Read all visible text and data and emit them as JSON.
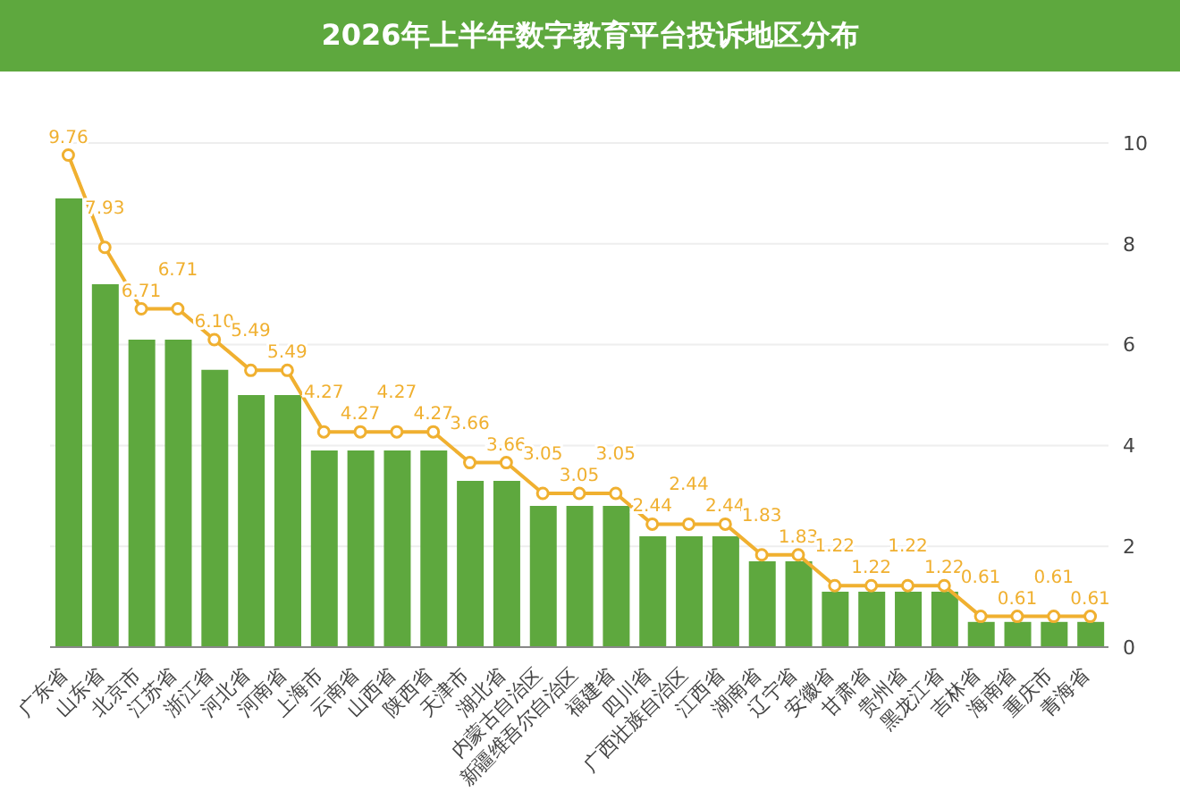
{
  "chart_data": {
    "type": "bar",
    "title": "2026年上半年数字教育平台投诉地区分布",
    "categories": [
      "广东省",
      "山东省",
      "北京市",
      "江苏省",
      "浙江省",
      "河北省",
      "河南省",
      "上海市",
      "云南省",
      "山西省",
      "陕西省",
      "天津市",
      "湖北省",
      "内蒙古自治区",
      "新疆维吾尔自治区",
      "福建省",
      "四川省",
      "广西壮族自治区",
      "江西省",
      "湖南省",
      "辽宁省",
      "安徽省",
      "甘肃省",
      "贵州省",
      "黑龙江省",
      "吉林省",
      "海南省",
      "重庆市",
      "青海省"
    ],
    "series": [
      {
        "color": "#5ea83e",
        "values": [
          8.9,
          7.2,
          6.1,
          6.1,
          5.5,
          5.0,
          5.0,
          3.9,
          3.9,
          3.9,
          3.9,
          3.3,
          3.3,
          2.8,
          2.8,
          2.8,
          2.2,
          2.2,
          2.2,
          1.7,
          1.7,
          1.1,
          1.1,
          1.1,
          1.1,
          0.5,
          0.5,
          0.5,
          0.5
        ]
      },
      {
        "type": "line",
        "color": "#f0b030",
        "marker": "circle",
        "values": [
          9.76,
          7.93,
          6.71,
          6.71,
          6.1,
          5.49,
          5.49,
          4.27,
          4.27,
          4.27,
          4.27,
          3.66,
          3.66,
          3.05,
          3.05,
          3.05,
          2.44,
          2.44,
          2.44,
          1.83,
          1.83,
          1.22,
          1.22,
          1.22,
          1.22,
          0.61,
          0.61,
          0.61,
          0.61
        ],
        "value_labels": [
          "9.76",
          "7.93",
          "6.71",
          "6.71",
          "6.10",
          "5.49",
          "5.49",
          "4.27",
          "4.27",
          "4.27",
          "4.27",
          "3.66",
          "3.66",
          "3.05",
          "3.05",
          "3.05",
          "2.44",
          "2.44",
          "2.44",
          "1.83",
          "1.83",
          "1.22",
          "1.22",
          "1.22",
          "1.22",
          "0.61",
          "0.61",
          "0.61",
          "0.61"
        ]
      }
    ],
    "ylim": [
      0,
      10
    ],
    "yticks": [
      0,
      2,
      4,
      6,
      8,
      10
    ],
    "grid": "y"
  }
}
